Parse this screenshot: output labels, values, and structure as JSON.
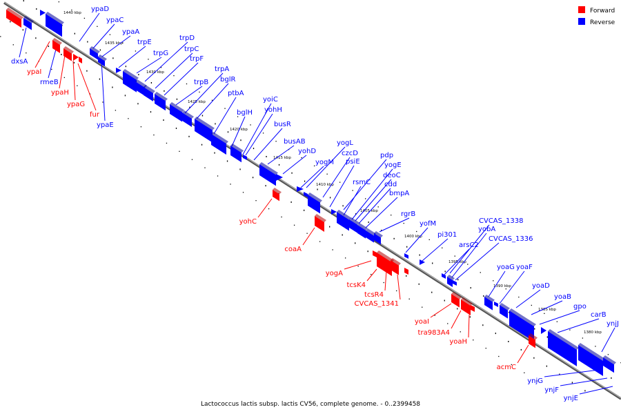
{
  "caption": "Lactococcus lactis subsp. lactis CV56, complete genome. - 0..2399458",
  "legend": [
    {
      "label": "Forward",
      "color": "#ff0000"
    },
    {
      "label": "Reverse",
      "color": "#0000ff"
    }
  ],
  "colors": {
    "forward": "#ff0000",
    "reverse": "#0000ff",
    "backbone": "#808080"
  },
  "scale_labels": [
    "1440 kbp",
    "1435 kbp",
    "1430 kbp",
    "1425 kbp",
    "1420 kbp",
    "1415 kbp",
    "1410 kbp",
    "1405 kbp",
    "1400 kbp",
    "1395 kbp",
    "1390 kbp",
    "1385 kbp",
    "1380 kbp"
  ],
  "genes": [
    {
      "name": "dxsA",
      "strand": "reverse"
    },
    {
      "name": "ypaI",
      "strand": "forward"
    },
    {
      "name": "rmeB",
      "strand": "reverse"
    },
    {
      "name": "ypaH",
      "strand": "forward"
    },
    {
      "name": "ypaG",
      "strand": "forward"
    },
    {
      "name": "fur",
      "strand": "forward"
    },
    {
      "name": "ypaE",
      "strand": "reverse"
    },
    {
      "name": "ypaD",
      "strand": "reverse"
    },
    {
      "name": "ypaC",
      "strand": "reverse"
    },
    {
      "name": "ypaA",
      "strand": "reverse"
    },
    {
      "name": "trpE",
      "strand": "reverse"
    },
    {
      "name": "trpG",
      "strand": "reverse"
    },
    {
      "name": "trpD",
      "strand": "reverse"
    },
    {
      "name": "trpC",
      "strand": "reverse"
    },
    {
      "name": "trpF",
      "strand": "reverse"
    },
    {
      "name": "trpB",
      "strand": "reverse"
    },
    {
      "name": "trpA",
      "strand": "reverse"
    },
    {
      "name": "bglR",
      "strand": "reverse"
    },
    {
      "name": "ptbA",
      "strand": "reverse"
    },
    {
      "name": "bglH",
      "strand": "reverse"
    },
    {
      "name": "yoiC",
      "strand": "reverse"
    },
    {
      "name": "yohH",
      "strand": "reverse"
    },
    {
      "name": "busR",
      "strand": "reverse"
    },
    {
      "name": "busAB",
      "strand": "reverse"
    },
    {
      "name": "yohD",
      "strand": "reverse"
    },
    {
      "name": "yohC",
      "strand": "forward"
    },
    {
      "name": "yogL",
      "strand": "reverse"
    },
    {
      "name": "yogM",
      "strand": "reverse"
    },
    {
      "name": "czcD",
      "strand": "reverse"
    },
    {
      "name": "psiE",
      "strand": "reverse"
    },
    {
      "name": "coaA",
      "strand": "forward"
    },
    {
      "name": "pdp",
      "strand": "reverse"
    },
    {
      "name": "yogE",
      "strand": "reverse"
    },
    {
      "name": "rsmC",
      "strand": "reverse"
    },
    {
      "name": "deoC",
      "strand": "reverse"
    },
    {
      "name": "cdd",
      "strand": "reverse"
    },
    {
      "name": "bmpA",
      "strand": "reverse"
    },
    {
      "name": "rgrB",
      "strand": "reverse"
    },
    {
      "name": "yofM",
      "strand": "reverse"
    },
    {
      "name": "pi301",
      "strand": "reverse"
    },
    {
      "name": "yogA",
      "strand": "forward"
    },
    {
      "name": "tcsK4",
      "strand": "forward"
    },
    {
      "name": "tcsR4",
      "strand": "forward"
    },
    {
      "name": "CVCAS_1341",
      "strand": "forward"
    },
    {
      "name": "CVCAS_1338",
      "strand": "reverse"
    },
    {
      "name": "yobA",
      "strand": "reverse"
    },
    {
      "name": "arsC2",
      "strand": "reverse"
    },
    {
      "name": "CVCAS_1336",
      "strand": "reverse"
    },
    {
      "name": "yoaG",
      "strand": "reverse"
    },
    {
      "name": "yoaF",
      "strand": "reverse"
    },
    {
      "name": "yoaD",
      "strand": "reverse"
    },
    {
      "name": "yoaB",
      "strand": "reverse"
    },
    {
      "name": "gpo",
      "strand": "reverse"
    },
    {
      "name": "carB",
      "strand": "reverse"
    },
    {
      "name": "ynjJ",
      "strand": "reverse"
    },
    {
      "name": "yoaI",
      "strand": "forward"
    },
    {
      "name": "tra983A4",
      "strand": "forward"
    },
    {
      "name": "yoaH",
      "strand": "forward"
    },
    {
      "name": "acmC",
      "strand": "forward"
    },
    {
      "name": "ynjG",
      "strand": "reverse"
    },
    {
      "name": "ynjF",
      "strand": "reverse"
    },
    {
      "name": "ynjE",
      "strand": "reverse"
    }
  ]
}
